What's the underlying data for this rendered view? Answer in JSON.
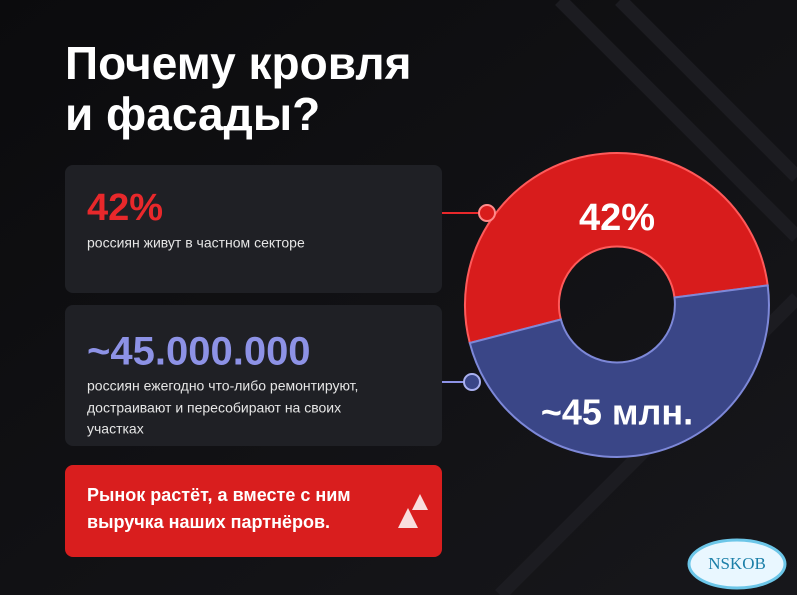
{
  "title": [
    "Почему кровля",
    "и фасады?"
  ],
  "cards": [
    {
      "headline": "42%",
      "text": [
        "россиян живут в частном секторе"
      ]
    },
    {
      "headline": "~45.000.000",
      "text": [
        "россиян ежегодно что-либо ремонтируют,",
        "достраивают и пересобирают на своих",
        "участках"
      ]
    }
  ],
  "callout": [
    "Рынок растёт, а вместе с ним",
    "выручка наших партнёров."
  ],
  "donut": {
    "labels": [
      "42%",
      "~45 млн."
    ]
  },
  "watermark": "NSKOB"
}
